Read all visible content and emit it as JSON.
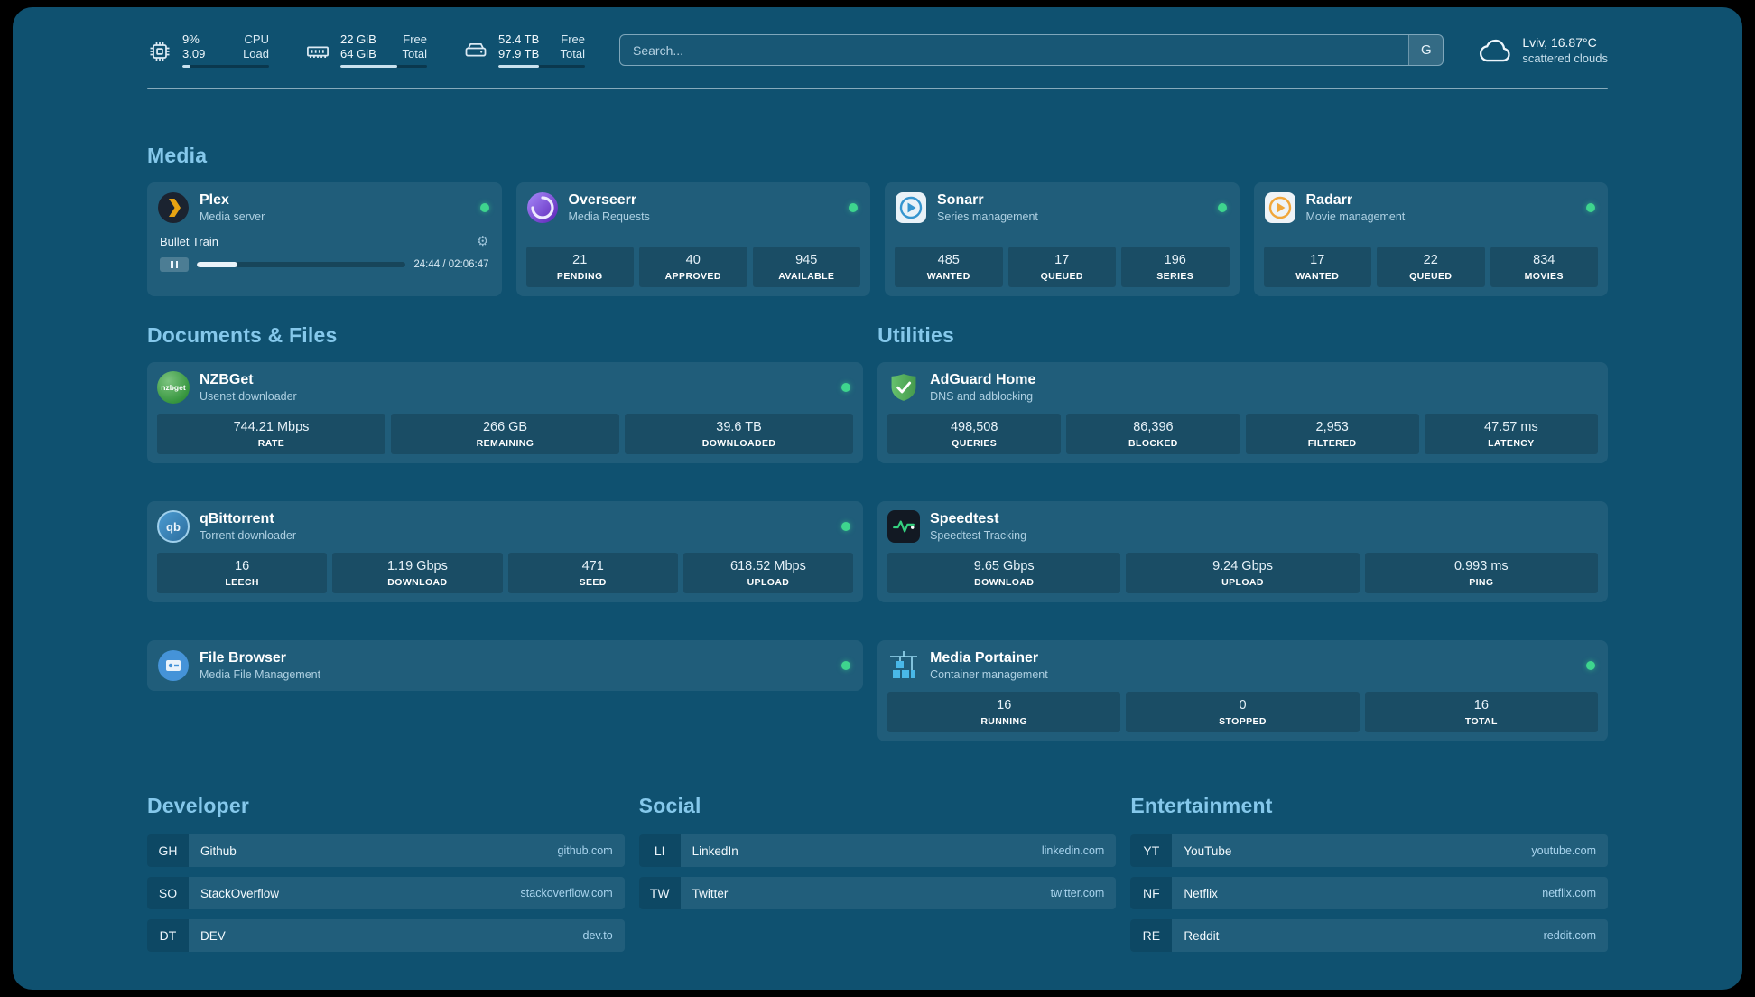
{
  "colors": {
    "background": "#0f5170",
    "accent": "#85c8eb",
    "status_online": "#3ed58e",
    "plex_brand": "#e7a312",
    "sonarr_brand": "#3595cf",
    "radarr_brand": "#f0a63a",
    "adguard_brand": "#59b465",
    "speedtest_wave": "#35d07f",
    "portainer_brand": "#49b8e8"
  },
  "icons": {
    "cpu": "chip-icon",
    "memory": "ram-icon",
    "disk": "drive-icon",
    "weather": "cloud-icon",
    "settings": "gear-icon",
    "pause": "pause-icon"
  },
  "header": {
    "cpu": {
      "value1": "9%",
      "label1": "CPU",
      "value2": "3.09",
      "label2": "Load",
      "bar_percent": 9
    },
    "memory": {
      "value1": "22 GiB",
      "label1": "Free",
      "value2": "64 GiB",
      "label2": "Total",
      "bar_percent": 66
    },
    "disk": {
      "value1": "52.4 TB",
      "label1": "Free",
      "value2": "97.9 TB",
      "label2": "Total",
      "bar_percent": 47
    },
    "search": {
      "placeholder": "Search...",
      "button_label": "G",
      "value": ""
    },
    "weather": {
      "location": "Lviv, 16.87°C",
      "condition": "scattered clouds"
    }
  },
  "sections": {
    "media": {
      "title": "Media",
      "plex": {
        "name": "Plex",
        "description": "Media server",
        "status": "online",
        "now_playing": {
          "title": "Bullet Train",
          "time": "24:44 / 02:06:47",
          "progress_percent": 19.5
        }
      },
      "overseerr": {
        "name": "Overseerr",
        "description": "Media Requests",
        "status": "online",
        "stats": [
          {
            "value": "21",
            "label": "PENDING"
          },
          {
            "value": "40",
            "label": "APPROVED"
          },
          {
            "value": "945",
            "label": "AVAILABLE"
          }
        ]
      },
      "sonarr": {
        "name": "Sonarr",
        "description": "Series management",
        "status": "online",
        "stats": [
          {
            "value": "485",
            "label": "WANTED"
          },
          {
            "value": "17",
            "label": "QUEUED"
          },
          {
            "value": "196",
            "label": "SERIES"
          }
        ]
      },
      "radarr": {
        "name": "Radarr",
        "description": "Movie management",
        "status": "online",
        "stats": [
          {
            "value": "17",
            "label": "WANTED"
          },
          {
            "value": "22",
            "label": "QUEUED"
          },
          {
            "value": "834",
            "label": "MOVIES"
          }
        ]
      }
    },
    "documents": {
      "title": "Documents & Files",
      "nzbget": {
        "name": "NZBGet",
        "description": "Usenet downloader",
        "icon_text": "nzbget",
        "status": "online",
        "stats": [
          {
            "value": "744.21 Mbps",
            "label": "RATE"
          },
          {
            "value": "266 GB",
            "label": "REMAINING"
          },
          {
            "value": "39.6 TB",
            "label": "DOWNLOADED"
          }
        ]
      },
      "qbittorrent": {
        "name": "qBittorrent",
        "description": "Torrent downloader",
        "icon_text": "qb",
        "status": "online",
        "stats": [
          {
            "value": "16",
            "label": "LEECH"
          },
          {
            "value": "1.19 Gbps",
            "label": "DOWNLOAD"
          },
          {
            "value": "471",
            "label": "SEED"
          },
          {
            "value": "618.52 Mbps",
            "label": "UPLOAD"
          }
        ]
      },
      "filebrowser": {
        "name": "File Browser",
        "description": "Media File Management",
        "status": "online"
      }
    },
    "utilities": {
      "title": "Utilities",
      "adguard": {
        "name": "AdGuard Home",
        "description": "DNS and adblocking",
        "stats": [
          {
            "value": "498,508",
            "label": "QUERIES"
          },
          {
            "value": "86,396",
            "label": "BLOCKED"
          },
          {
            "value": "2,953",
            "label": "FILTERED"
          },
          {
            "value": "47.57 ms",
            "label": "LATENCY"
          }
        ]
      },
      "speedtest": {
        "name": "Speedtest",
        "description": "Speedtest Tracking",
        "stats": [
          {
            "value": "9.65 Gbps",
            "label": "DOWNLOAD"
          },
          {
            "value": "9.24 Gbps",
            "label": "UPLOAD"
          },
          {
            "value": "0.993 ms",
            "label": "PING"
          }
        ]
      },
      "portainer": {
        "name": "Media Portainer",
        "description": "Container management",
        "status": "online",
        "stats": [
          {
            "value": "16",
            "label": "RUNNING"
          },
          {
            "value": "0",
            "label": "STOPPED"
          },
          {
            "value": "16",
            "label": "TOTAL"
          }
        ]
      }
    }
  },
  "bookmarks": [
    {
      "title": "Developer",
      "items": [
        {
          "abbr": "GH",
          "name": "Github",
          "host": "github.com"
        },
        {
          "abbr": "SO",
          "name": "StackOverflow",
          "host": "stackoverflow.com"
        },
        {
          "abbr": "DT",
          "name": "DEV",
          "host": "dev.to"
        }
      ]
    },
    {
      "title": "Social",
      "items": [
        {
          "abbr": "LI",
          "name": "LinkedIn",
          "host": "linkedin.com"
        },
        {
          "abbr": "TW",
          "name": "Twitter",
          "host": "twitter.com"
        }
      ]
    },
    {
      "title": "Entertainment",
      "items": [
        {
          "abbr": "YT",
          "name": "YouTube",
          "host": "youtube.com"
        },
        {
          "abbr": "NF",
          "name": "Netflix",
          "host": "netflix.com"
        },
        {
          "abbr": "RE",
          "name": "Reddit",
          "host": "reddit.com"
        }
      ]
    }
  ]
}
